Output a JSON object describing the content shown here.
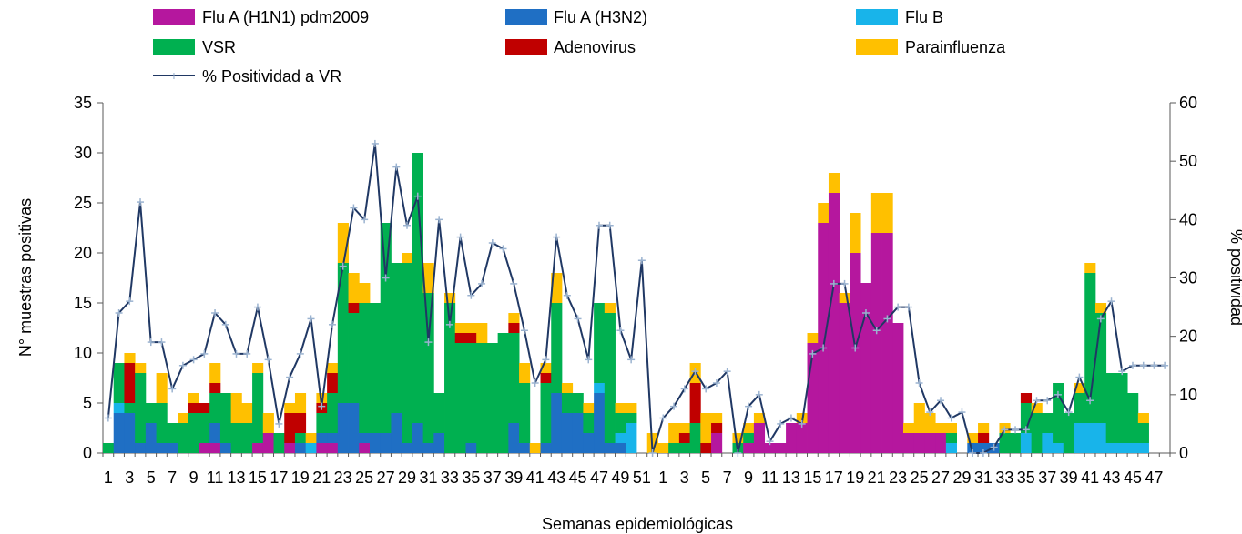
{
  "chart_data": {
    "type": "bar",
    "stacked": true,
    "title": "",
    "xlabel": "Semanas epidemiológicas",
    "ylabel": "N° muestras positivas",
    "y2label": "% positividad",
    "ylim": [
      0,
      35
    ],
    "y2lim": [
      0,
      60
    ],
    "yticks": [
      0,
      5,
      10,
      15,
      20,
      25,
      30,
      35
    ],
    "y2ticks": [
      0,
      10,
      20,
      30,
      40,
      50,
      60
    ],
    "grid": false,
    "legend_position": "top",
    "x_tick_labels": [
      "1",
      "3",
      "5",
      "7",
      "9",
      "11",
      "13",
      "15",
      "17",
      "19",
      "21",
      "23",
      "25",
      "27",
      "29",
      "31",
      "33",
      "35",
      "37",
      "39",
      "41",
      "43",
      "45",
      "47",
      "49",
      "51",
      "1",
      "3",
      "5",
      "7",
      "9",
      "11",
      "13",
      "15",
      "17",
      "19",
      "21",
      "23",
      "25",
      "27",
      "29",
      "31",
      "33",
      "35",
      "37",
      "39",
      "41",
      "43",
      "45",
      "47"
    ],
    "weeks": [
      1,
      2,
      3,
      4,
      5,
      6,
      7,
      8,
      9,
      10,
      11,
      12,
      13,
      14,
      15,
      16,
      17,
      18,
      19,
      20,
      21,
      22,
      23,
      24,
      25,
      26,
      27,
      28,
      29,
      30,
      31,
      32,
      33,
      34,
      35,
      36,
      37,
      38,
      39,
      40,
      41,
      42,
      43,
      44,
      45,
      46,
      47,
      48,
      49,
      50,
      51,
      52,
      1,
      2,
      3,
      4,
      5,
      6,
      7,
      8,
      9,
      10,
      11,
      12,
      13,
      14,
      15,
      16,
      17,
      18,
      19,
      20,
      21,
      22,
      23,
      24,
      25,
      26,
      27,
      28,
      29,
      30,
      31,
      32,
      33,
      34,
      35,
      36,
      37,
      38,
      39,
      40,
      41,
      42,
      43,
      44,
      45,
      46,
      47,
      48
    ],
    "series": [
      {
        "name": "Flu A (H1N1) pdm2009",
        "color": "#b5179e",
        "values": [
          0,
          0,
          0,
          0,
          0,
          0,
          0,
          0,
          0,
          1,
          1,
          0,
          0,
          0,
          1,
          2,
          0,
          1,
          0,
          0,
          1,
          1,
          0,
          0,
          1,
          0,
          0,
          0,
          0,
          0,
          0,
          0,
          0,
          0,
          0,
          0,
          0,
          0,
          0,
          0,
          0,
          0,
          0,
          0,
          0,
          0,
          0,
          0,
          0,
          0,
          0,
          0,
          0,
          0,
          0,
          0,
          0,
          2,
          0,
          0,
          1,
          3,
          1,
          1,
          3,
          3,
          11,
          23,
          26,
          15,
          20,
          17,
          22,
          22,
          13,
          2,
          2,
          2,
          2,
          0,
          0,
          0,
          0,
          0,
          0,
          0,
          0,
          0,
          0,
          0,
          0,
          0,
          0,
          0,
          0,
          0,
          0,
          0,
          0,
          0
        ]
      },
      {
        "name": "Flu A (H3N2)",
        "color": "#1f6fc4",
        "values": [
          0,
          4,
          4,
          1,
          3,
          1,
          1,
          0,
          0,
          0,
          2,
          1,
          0,
          0,
          0,
          0,
          0,
          0,
          1,
          0,
          1,
          1,
          5,
          5,
          1,
          2,
          2,
          4,
          1,
          3,
          1,
          2,
          0,
          0,
          1,
          0,
          0,
          0,
          3,
          1,
          0,
          1,
          6,
          4,
          4,
          2,
          6,
          1,
          1,
          0,
          0,
          0,
          0,
          0,
          0,
          0,
          0,
          0,
          0,
          0,
          0,
          0,
          0,
          0,
          0,
          0,
          0,
          0,
          0,
          0,
          0,
          0,
          0,
          0,
          0,
          0,
          0,
          0,
          0,
          0,
          0,
          1,
          1,
          1,
          0,
          0,
          0,
          0,
          0,
          0,
          0,
          0,
          0,
          0,
          0,
          0,
          0,
          0,
          0,
          0
        ]
      },
      {
        "name": "Flu B",
        "color": "#18b4ea",
        "values": [
          0,
          1,
          0,
          0,
          0,
          0,
          0,
          0,
          0,
          0,
          0,
          0,
          0,
          0,
          0,
          0,
          0,
          0,
          0,
          1,
          0,
          0,
          0,
          0,
          0,
          0,
          0,
          0,
          0,
          0,
          0,
          0,
          0,
          0,
          0,
          0,
          0,
          0,
          0,
          0,
          0,
          0,
          0,
          0,
          0,
          0,
          1,
          0,
          1,
          3,
          0,
          0,
          0,
          0,
          0,
          0,
          0,
          0,
          0,
          0,
          0,
          0,
          0,
          0,
          0,
          0,
          0,
          0,
          0,
          0,
          0,
          0,
          0,
          0,
          0,
          0,
          0,
          0,
          0,
          1,
          0,
          0,
          0,
          0,
          0,
          0,
          2,
          0,
          2,
          1,
          0,
          3,
          3,
          3,
          1,
          1,
          1,
          1,
          0,
          0
        ]
      },
      {
        "name": "VSR",
        "color": "#00b050",
        "values": [
          1,
          4,
          1,
          7,
          2,
          4,
          2,
          3,
          4,
          3,
          3,
          5,
          3,
          3,
          7,
          0,
          2,
          0,
          1,
          0,
          2,
          4,
          14,
          9,
          13,
          13,
          21,
          15,
          18,
          27,
          15,
          4,
          15,
          11,
          10,
          11,
          11,
          12,
          9,
          6,
          0,
          6,
          9,
          2,
          2,
          2,
          8,
          13,
          2,
          1,
          0,
          0,
          0,
          1,
          1,
          3,
          0,
          0,
          0,
          1,
          1,
          0,
          0,
          0,
          0,
          0,
          0,
          0,
          0,
          0,
          0,
          0,
          0,
          0,
          0,
          0,
          0,
          0,
          0,
          1,
          0,
          0,
          0,
          0,
          2,
          2,
          3,
          4,
          2,
          6,
          4,
          3,
          15,
          11,
          7,
          7,
          5,
          2,
          0,
          0
        ]
      },
      {
        "name": "Adenovirus",
        "color": "#c00000",
        "values": [
          0,
          0,
          4,
          0,
          0,
          0,
          0,
          0,
          1,
          1,
          1,
          0,
          0,
          0,
          0,
          0,
          0,
          3,
          2,
          0,
          1,
          2,
          0,
          1,
          0,
          0,
          0,
          0,
          0,
          0,
          0,
          0,
          0,
          1,
          1,
          0,
          0,
          0,
          1,
          0,
          0,
          1,
          0,
          0,
          0,
          0,
          0,
          0,
          0,
          0,
          0,
          0,
          0,
          0,
          1,
          4,
          1,
          1,
          0,
          0,
          0,
          0,
          0,
          0,
          0,
          0,
          0,
          0,
          0,
          0,
          0,
          0,
          0,
          0,
          0,
          0,
          0,
          0,
          0,
          0,
          0,
          0,
          1,
          0,
          0,
          0,
          1,
          0,
          0,
          0,
          0,
          0,
          0,
          0,
          0,
          0,
          0,
          0,
          0,
          0
        ]
      },
      {
        "name": "Parainfluenza",
        "color": "#ffc000",
        "values": [
          0,
          0,
          1,
          1,
          0,
          3,
          0,
          1,
          1,
          0,
          2,
          0,
          3,
          2,
          1,
          2,
          0,
          1,
          2,
          1,
          1,
          1,
          4,
          3,
          2,
          0,
          0,
          0,
          1,
          0,
          3,
          0,
          1,
          1,
          1,
          2,
          0,
          0,
          1,
          2,
          1,
          1,
          3,
          1,
          0,
          1,
          0,
          1,
          1,
          1,
          0,
          2,
          1,
          2,
          1,
          2,
          3,
          1,
          0,
          1,
          1,
          1,
          0,
          0,
          0,
          1,
          1,
          2,
          2,
          1,
          4,
          0,
          4,
          4,
          0,
          1,
          3,
          2,
          1,
          1,
          0,
          1,
          1,
          0,
          1,
          0,
          0,
          1,
          0,
          0,
          0,
          1,
          1,
          1,
          0,
          0,
          0,
          1,
          0,
          0
        ]
      },
      {
        "name": "% Positividad a VR",
        "color": "#203864",
        "axis": "right",
        "type": "line",
        "values": [
          6,
          24,
          26,
          43,
          19,
          19,
          11,
          15,
          16,
          17,
          24,
          22,
          17,
          17,
          25,
          16,
          5,
          13,
          17,
          23,
          8,
          22,
          32,
          42,
          40,
          53,
          30,
          49,
          39,
          44,
          19,
          40,
          22,
          37,
          27,
          29,
          36,
          35,
          29,
          21,
          12,
          16,
          37,
          27,
          23,
          16,
          39,
          39,
          21,
          16,
          33,
          0,
          6,
          8,
          11,
          14,
          11,
          12,
          14,
          0,
          8,
          10,
          2,
          5,
          6,
          5,
          17,
          18,
          29,
          29,
          18,
          24,
          21,
          23,
          25,
          25,
          12,
          7,
          9,
          6,
          7,
          0,
          0,
          1,
          4,
          4,
          4,
          9,
          9,
          10,
          7,
          13,
          9,
          23,
          26,
          14,
          15,
          15,
          15,
          15
        ]
      }
    ]
  }
}
